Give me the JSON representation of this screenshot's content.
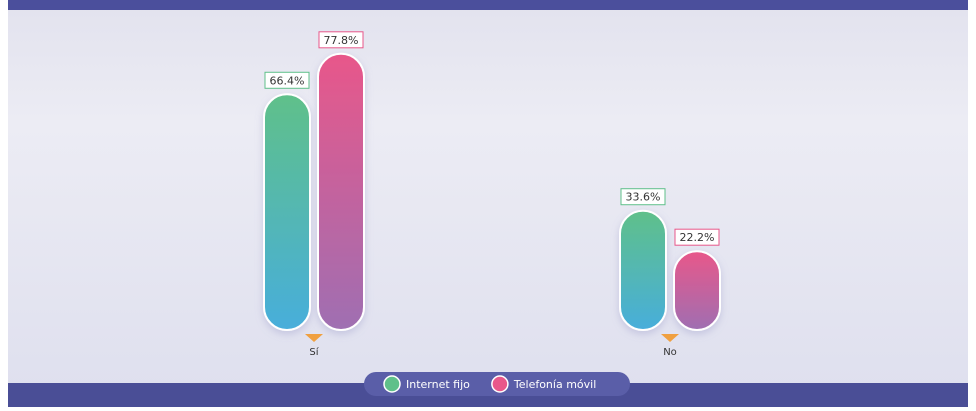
{
  "chart_data": {
    "type": "bar",
    "categories": [
      "Sí",
      "No"
    ],
    "series": [
      {
        "name": "Internet fijo",
        "color": "#5fc08a",
        "values": [
          66.4,
          33.6
        ],
        "value_labels": [
          "66.4%",
          "33.6%"
        ]
      },
      {
        "name": "Telefonía móvil",
        "color": "#e8578a",
        "values": [
          77.8,
          22.2
        ],
        "value_labels": [
          "77.8%",
          "22.2%"
        ]
      }
    ],
    "legend": "bottom"
  }
}
